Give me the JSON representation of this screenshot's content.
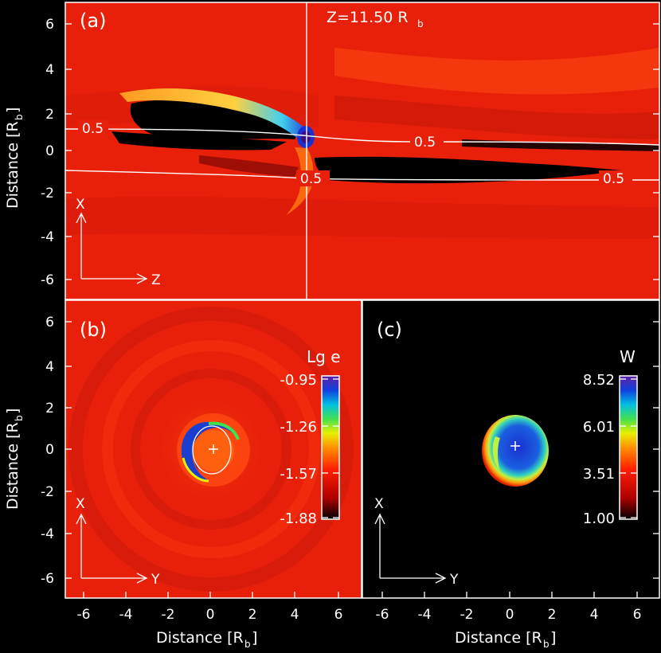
{
  "panel_a": {
    "tag": "(a)",
    "z_label": "Z=11.50 R",
    "z_sub": "b",
    "contour_labels": [
      "0.5",
      "0.5",
      "0.5",
      "0.5"
    ],
    "axis_up": "X",
    "axis_right": "Z"
  },
  "panel_b": {
    "tag": "(b)",
    "colorbar_title": "Lg  e",
    "colorbar_ticks": [
      "-0.95",
      "-1.26",
      "-1.57",
      "-1.88"
    ],
    "axis_up": "X",
    "axis_right": "Y"
  },
  "panel_c": {
    "tag": "(c)",
    "colorbar_title": "W",
    "colorbar_ticks": [
      "8.52",
      "6.01",
      "3.51",
      "1.00"
    ],
    "axis_up": "X",
    "axis_right": "Y"
  },
  "y_axis_label": "Distance [R",
  "y_axis_label_sub": "b",
  "y_axis_label_end": "]",
  "x_axis_label": "Distance [R",
  "x_axis_label_sub": "b",
  "x_axis_label_end": "]",
  "y_ticks": [
    "6",
    "4",
    "2",
    "0",
    "-2",
    "-4",
    "-6"
  ],
  "x_ticks": [
    "-6",
    "-4",
    "-2",
    "0",
    "2",
    "4",
    "6"
  ],
  "colors": {
    "background": "#000000",
    "field_red": "#e8200a",
    "field_dark_red": "#b00f05",
    "highlight_orange": "#ff7a10",
    "cavity_black": "#000000",
    "ring_blue": "#1a3fd0",
    "ring_purple": "#3a1080",
    "ring_green": "#40e050",
    "contour_white": "#ffffff"
  }
}
